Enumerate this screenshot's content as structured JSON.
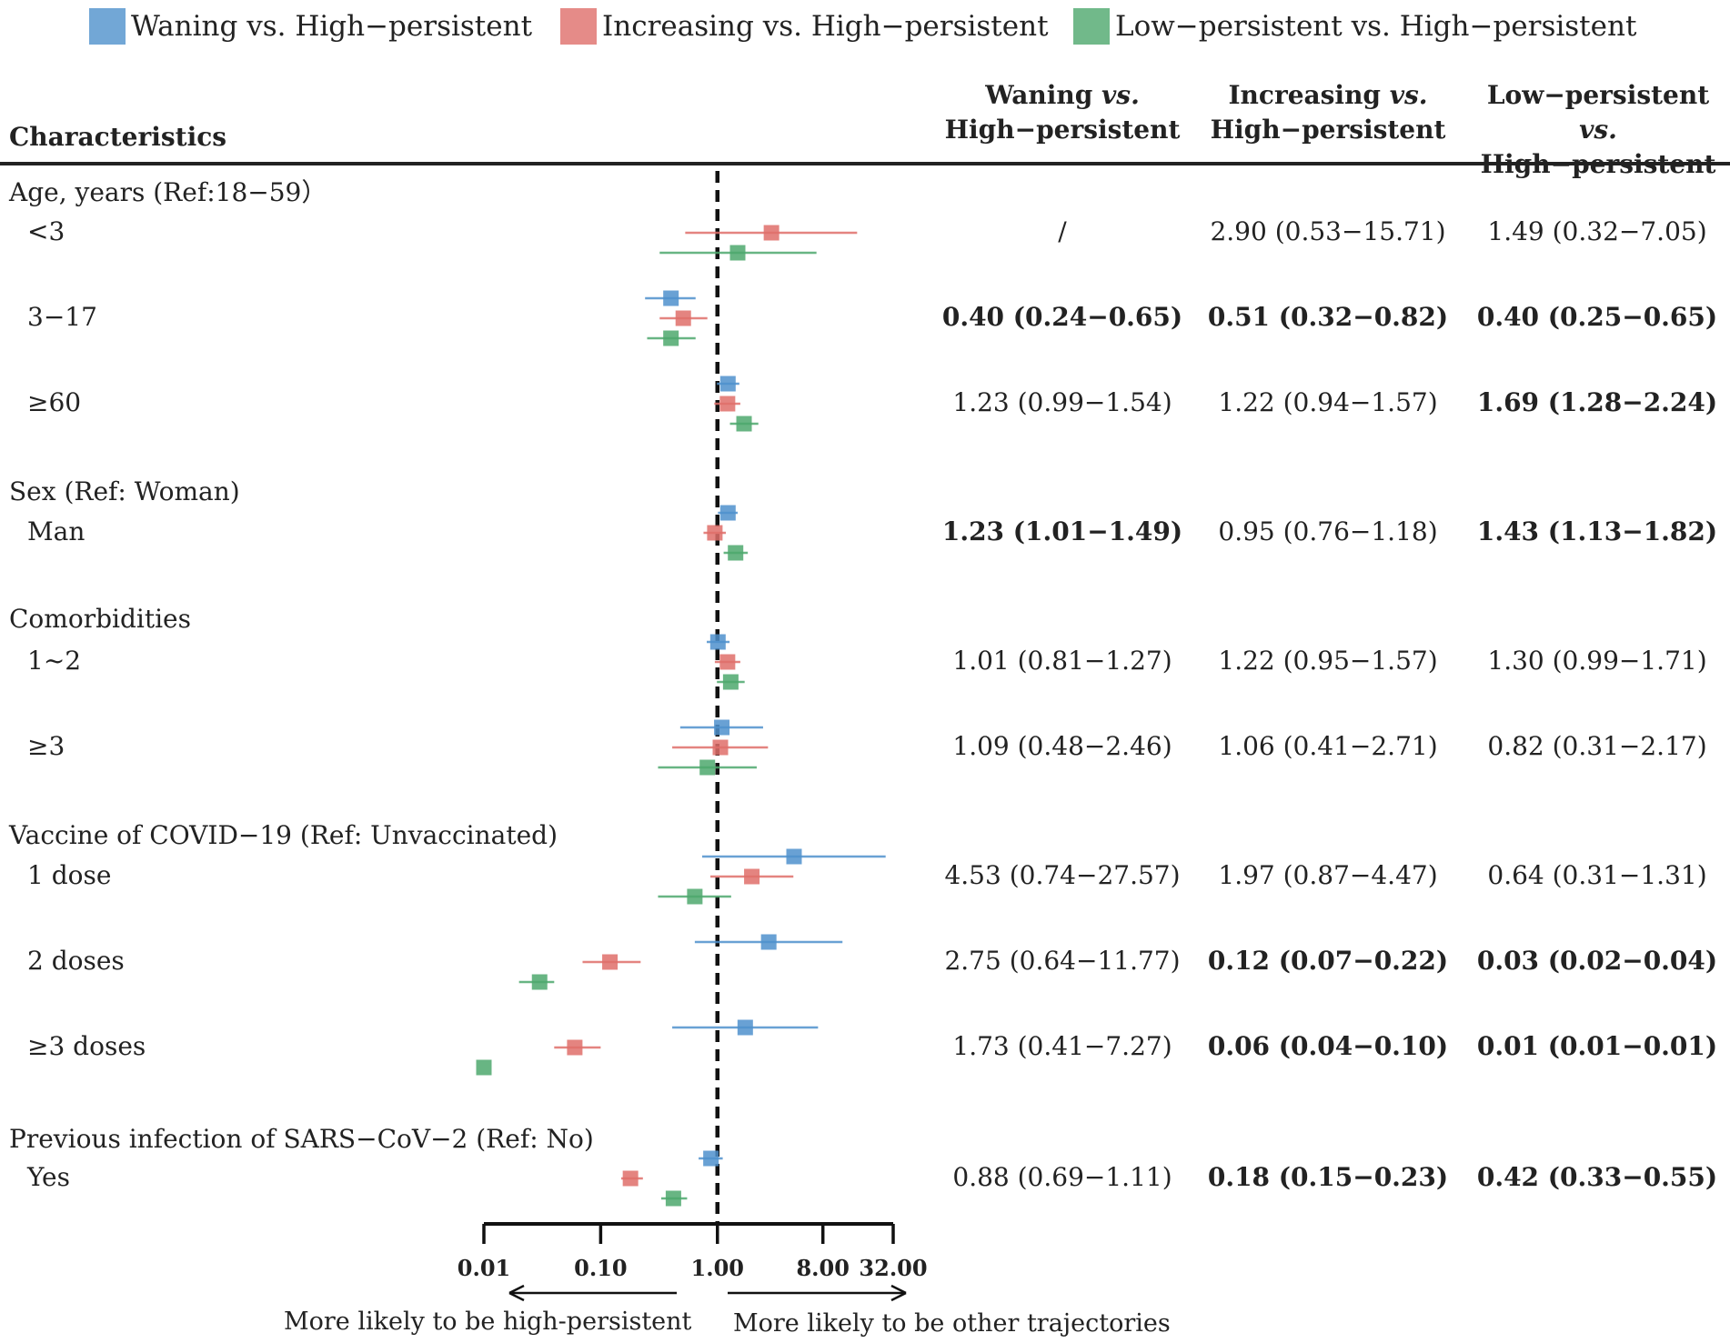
{
  "legend": [
    {
      "label": "Waning vs. High−persistent",
      "color": "#4f91cc"
    },
    {
      "label": "Increasing vs. High−persistent",
      "color": "#df6e6a"
    },
    {
      "label": "Low−persistent vs. High−persistent",
      "color": "#4ea86d"
    }
  ],
  "header": {
    "characteristics": "Characteristics",
    "col1": {
      "line1_pre": "Waning ",
      "line1_em": "vs.",
      "line2": "High−persistent"
    },
    "col2": {
      "line1_pre": "Increasing ",
      "line1_em": "vs.",
      "line2": "High−persistent"
    },
    "col3": {
      "line1_pre": "Low−persistent ",
      "line1_em": "vs.",
      "line2": "High−persistent"
    }
  },
  "groups": [
    {
      "label": "Age, years (Ref:18−59）",
      "levels": [
        {
          "label": "<3",
          "cells": [
            {
              "text": "/",
              "bold": false
            },
            {
              "text": "2.90 (0.53−15.71)",
              "bold": false
            },
            {
              "text": "1.49 (0.32−7.05)",
              "bold": false
            }
          ]
        },
        {
          "label": "3−17",
          "cells": [
            {
              "text": "0.40 (0.24−0.65)",
              "bold": true
            },
            {
              "text": "0.51 (0.32−0.82)",
              "bold": true
            },
            {
              "text": "0.40 (0.25−0.65)",
              "bold": true
            }
          ]
        },
        {
          "label": "≥60",
          "cells": [
            {
              "text": "1.23 (0.99−1.54)",
              "bold": false
            },
            {
              "text": "1.22 (0.94−1.57)",
              "bold": false
            },
            {
              "text": "1.69 (1.28−2.24)",
              "bold": true
            }
          ]
        }
      ]
    },
    {
      "label": "Sex (Ref: Woman)",
      "levels": [
        {
          "label": "Man",
          "cells": [
            {
              "text": "1.23 (1.01−1.49)",
              "bold": true
            },
            {
              "text": "0.95 (0.76−1.18)",
              "bold": false
            },
            {
              "text": "1.43 (1.13−1.82)",
              "bold": true
            }
          ]
        }
      ]
    },
    {
      "label": "Comorbidities",
      "levels": [
        {
          "label": "1~2",
          "cells": [
            {
              "text": "1.01 (0.81−1.27)",
              "bold": false
            },
            {
              "text": "1.22 (0.95−1.57)",
              "bold": false
            },
            {
              "text": "1.30 (0.99−1.71)",
              "bold": false
            }
          ]
        },
        {
          "label": "≥3",
          "cells": [
            {
              "text": "1.09 (0.48−2.46)",
              "bold": false
            },
            {
              "text": "1.06 (0.41−2.71)",
              "bold": false
            },
            {
              "text": "0.82 (0.31−2.17)",
              "bold": false
            }
          ]
        }
      ]
    },
    {
      "label": "Vaccine of COVID−19 (Ref: Unvaccinated)",
      "levels": [
        {
          "label": "1 dose",
          "cells": [
            {
              "text": "4.53 (0.74−27.57)",
              "bold": false
            },
            {
              "text": "1.97 (0.87−4.47)",
              "bold": false
            },
            {
              "text": "0.64 (0.31−1.31)",
              "bold": false
            }
          ]
        },
        {
          "label": "2 doses",
          "cells": [
            {
              "text": "2.75 (0.64−11.77)",
              "bold": false
            },
            {
              "text": "0.12 (0.07−0.22)",
              "bold": true
            },
            {
              "text": "0.03 (0.02−0.04)",
              "bold": true
            }
          ]
        },
        {
          "label": "≥3 doses",
          "cells": [
            {
              "text": "1.73 (0.41−7.27)",
              "bold": false
            },
            {
              "text": "0.06 (0.04−0.10)",
              "bold": true
            },
            {
              "text": "0.01 (0.01−0.01)",
              "bold": true
            }
          ]
        }
      ]
    },
    {
      "label": "Previous infection of SARS−CoV−2 (Ref: No)",
      "levels": [
        {
          "label": "Yes",
          "cells": [
            {
              "text": "0.88 (0.69−1.11)",
              "bold": false
            },
            {
              "text": "0.18 (0.15−0.23)",
              "bold": true
            },
            {
              "text": "0.42 (0.33−0.55)",
              "bold": true
            }
          ]
        }
      ]
    }
  ],
  "chart_data": {
    "type": "forest",
    "scale": "log10",
    "reference_line": 1.0,
    "xlim": [
      0.01,
      32
    ],
    "ticks": [
      0.01,
      0.1,
      1,
      8,
      32
    ],
    "tick_labels": [
      "0.01",
      "0.10",
      "1.00",
      "8.00",
      "32.00"
    ],
    "left_direction_label": "More likely to be high-persistent",
    "right_direction_label": "More likely to be other trajectories",
    "series_names": [
      "Waning vs. High−persistent",
      "Increasing vs. High−persistent",
      "Low−persistent vs. High−persistent"
    ],
    "rows": [
      {
        "label": "<3",
        "estimates": [
          null,
          {
            "or": 2.9,
            "lo": 0.53,
            "hi": 15.71
          },
          {
            "or": 1.49,
            "lo": 0.32,
            "hi": 7.05
          }
        ]
      },
      {
        "label": "3−17",
        "estimates": [
          {
            "or": 0.4,
            "lo": 0.24,
            "hi": 0.65
          },
          {
            "or": 0.51,
            "lo": 0.32,
            "hi": 0.82
          },
          {
            "or": 0.4,
            "lo": 0.25,
            "hi": 0.65
          }
        ]
      },
      {
        "label": "≥60",
        "estimates": [
          {
            "or": 1.23,
            "lo": 0.99,
            "hi": 1.54
          },
          {
            "or": 1.22,
            "lo": 0.94,
            "hi": 1.57
          },
          {
            "or": 1.69,
            "lo": 1.28,
            "hi": 2.24
          }
        ]
      },
      {
        "label": "Man",
        "estimates": [
          {
            "or": 1.23,
            "lo": 1.01,
            "hi": 1.49
          },
          {
            "or": 0.95,
            "lo": 0.76,
            "hi": 1.18
          },
          {
            "or": 1.43,
            "lo": 1.13,
            "hi": 1.82
          }
        ]
      },
      {
        "label": "1~2",
        "estimates": [
          {
            "or": 1.01,
            "lo": 0.81,
            "hi": 1.27
          },
          {
            "or": 1.22,
            "lo": 0.95,
            "hi": 1.57
          },
          {
            "or": 1.3,
            "lo": 0.99,
            "hi": 1.71
          }
        ]
      },
      {
        "label": "≥3",
        "estimates": [
          {
            "or": 1.09,
            "lo": 0.48,
            "hi": 2.46
          },
          {
            "or": 1.06,
            "lo": 0.41,
            "hi": 2.71
          },
          {
            "or": 0.82,
            "lo": 0.31,
            "hi": 2.17
          }
        ]
      },
      {
        "label": "1 dose",
        "estimates": [
          {
            "or": 4.53,
            "lo": 0.74,
            "hi": 27.57
          },
          {
            "or": 1.97,
            "lo": 0.87,
            "hi": 4.47
          },
          {
            "or": 0.64,
            "lo": 0.31,
            "hi": 1.31
          }
        ]
      },
      {
        "label": "2 doses",
        "estimates": [
          {
            "or": 2.75,
            "lo": 0.64,
            "hi": 11.77
          },
          {
            "or": 0.12,
            "lo": 0.07,
            "hi": 0.22
          },
          {
            "or": 0.03,
            "lo": 0.02,
            "hi": 0.04
          }
        ]
      },
      {
        "label": "≥3 doses",
        "estimates": [
          {
            "or": 1.73,
            "lo": 0.41,
            "hi": 7.27
          },
          {
            "or": 0.06,
            "lo": 0.04,
            "hi": 0.1
          },
          {
            "or": 0.01,
            "lo": 0.01,
            "hi": 0.01
          }
        ]
      },
      {
        "label": "Yes",
        "estimates": [
          {
            "or": 0.88,
            "lo": 0.69,
            "hi": 1.11
          },
          {
            "or": 0.18,
            "lo": 0.15,
            "hi": 0.23
          },
          {
            "or": 0.42,
            "lo": 0.33,
            "hi": 0.55
          }
        ]
      }
    ]
  }
}
